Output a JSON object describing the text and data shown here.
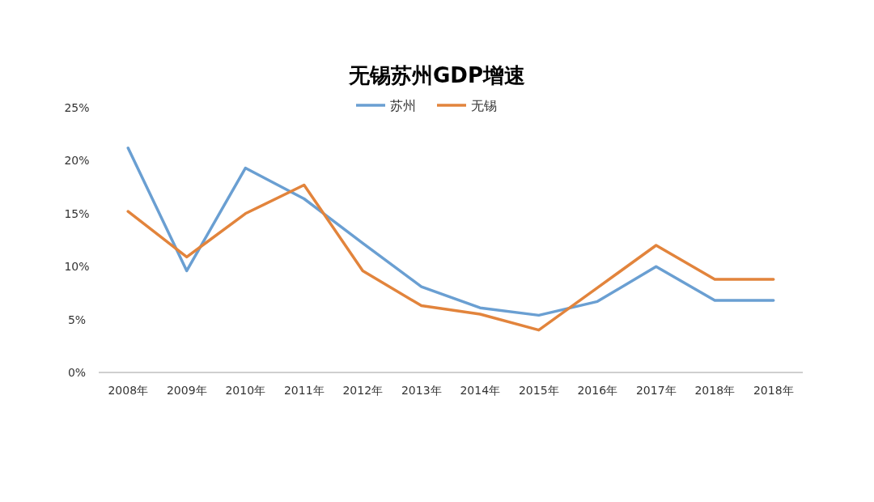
{
  "chart_data": {
    "type": "line",
    "title": "无锡苏州GDP增速",
    "categories": [
      "2008年",
      "2009年",
      "2010年",
      "2011年",
      "2012年",
      "2013年",
      "2014年",
      "2015年",
      "2016年",
      "2017年",
      "2018年",
      "2018年"
    ],
    "series": [
      {
        "name": "苏州",
        "color": "#6a9fd2",
        "values": [
          21.2,
          9.6,
          19.3,
          16.4,
          12.2,
          8.1,
          6.1,
          5.4,
          6.7,
          10,
          6.8,
          6.8
        ]
      },
      {
        "name": "无锡",
        "color": "#e2843c",
        "values": [
          15.2,
          10.9,
          15,
          17.7,
          9.6,
          6.3,
          5.5,
          4,
          8,
          12,
          8.8,
          8.8
        ]
      }
    ],
    "ylim": [
      0,
      25
    ],
    "yticks": [
      {
        "value": 0,
        "label": "0%"
      },
      {
        "value": 5,
        "label": "5%"
      },
      {
        "value": 10,
        "label": "10%"
      },
      {
        "value": 15,
        "label": "15%"
      },
      {
        "value": 20,
        "label": "20%"
      },
      {
        "value": 25,
        "label": "25%"
      }
    ],
    "legend": "top"
  }
}
